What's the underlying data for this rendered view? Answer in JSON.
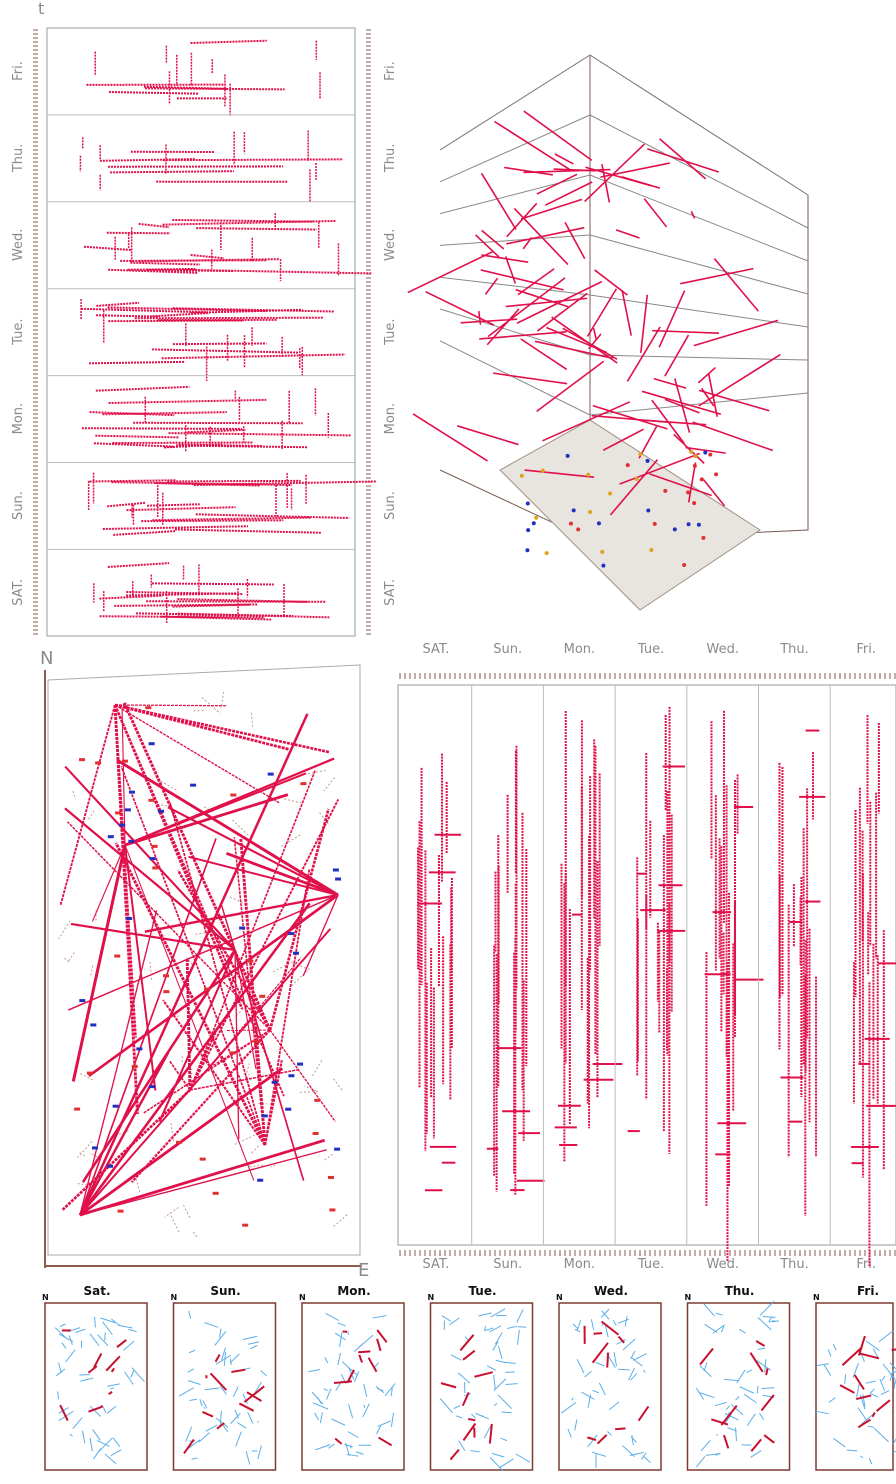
{
  "panel_a": {
    "axis_label": "t",
    "left_labels": [
      "Fri.",
      "Thu.",
      "Wed.",
      "Tue.",
      "Mon.",
      "Sun.",
      "SAT."
    ],
    "right_labels": [
      "Fri.",
      "Thu.",
      "Wed.",
      "Tue.",
      "Mon.",
      "Sun.",
      "SAT."
    ]
  },
  "panel_c": {
    "north": "N",
    "east": "E"
  },
  "panel_d": {
    "top_labels": [
      "SAT.",
      "Sun.",
      "Mon.",
      "Tue.",
      "Wed.",
      "Thu.",
      "Fri."
    ],
    "bottom_labels": [
      "SAT.",
      "Sun.",
      "Mon.",
      "Tue.",
      "Wed.",
      "Thu.",
      "Fri."
    ]
  },
  "panel_e": {
    "maps": [
      {
        "title": "Sat.",
        "north": "N"
      },
      {
        "title": "Sun.",
        "north": "N"
      },
      {
        "title": "Mon.",
        "north": "N"
      },
      {
        "title": "Tue.",
        "north": "N"
      },
      {
        "title": "Wed.",
        "north": "N"
      },
      {
        "title": "Thu.",
        "north": "N"
      },
      {
        "title": "Fri.",
        "north": "N"
      }
    ]
  }
}
